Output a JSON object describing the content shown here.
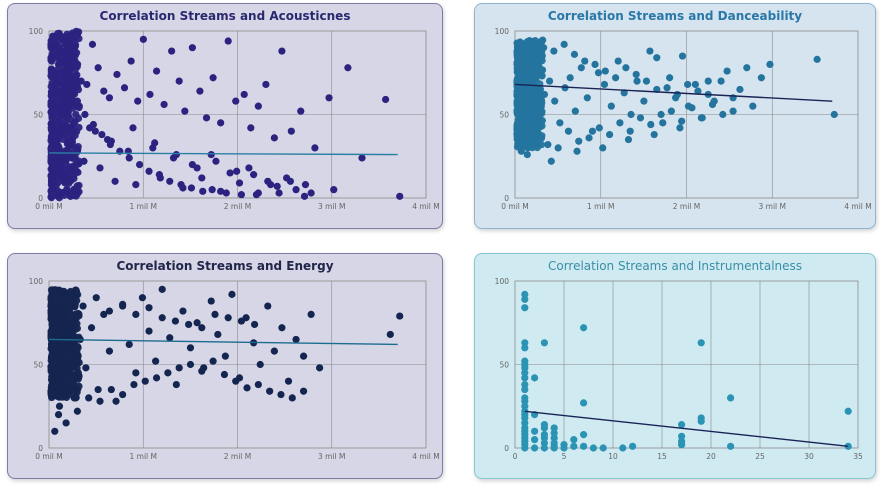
{
  "chart_data": [
    {
      "type": "scatter",
      "title": "Correlation Streams and Acousticnes",
      "x_ticks": [
        "0 mil M",
        "1 mil M",
        "2 mil M",
        "3 mil M",
        "4 mil M"
      ],
      "y_ticks": [
        "0",
        "50",
        "100"
      ],
      "xlim": [
        0,
        4000000000
      ],
      "ylim": [
        0,
        100
      ],
      "grid": true,
      "colors": {
        "points": "#2b237f",
        "trend": "#2a7fa6",
        "title": "#2b2870"
      },
      "trend": {
        "x": [
          0,
          3700000000
        ],
        "y": [
          27,
          26
        ]
      },
      "points": {
        "x": [
          20000000,
          40000000,
          60000000,
          90000000,
          120000000,
          150000000,
          190000000,
          230000000,
          270000000,
          320000000,
          380000000,
          440000000,
          500000000,
          560000000,
          620000000,
          700000000,
          780000000,
          850000000,
          920000000,
          980000000,
          1050000000,
          1120000000,
          1200000000,
          1280000000,
          1360000000,
          1420000000,
          1500000000,
          1580000000,
          1650000000,
          1720000000,
          1800000000,
          1880000000,
          1960000000,
          2050000000,
          2120000000,
          2200000000,
          2280000000,
          2370000000,
          2450000000,
          2550000000,
          2650000000,
          2800000000,
          2950000000,
          3150000000,
          3550000000,
          3700000000,
          60000000,
          140000000,
          260000000,
          410000000,
          600000000,
          820000000,
          1100000000,
          1300000000,
          1500000000,
          1700000000,
          1900000000,
          2100000000,
          2300000000,
          2500000000,
          2700000000,
          3000000000,
          100000000,
          220000000,
          350000000,
          520000000,
          680000000,
          900000000,
          1150000000,
          1400000000,
          1600000000,
          1800000000,
          2000000000,
          2200000000,
          2400000000,
          2600000000,
          2760000000,
          50000000,
          170000000,
          300000000,
          470000000,
          640000000,
          870000000,
          1080000000,
          1330000000,
          1550000000,
          1750000000,
          1970000000,
          2150000000,
          2330000000,
          2540000000,
          30000000,
          80000000,
          130000000,
          200000000,
          280000000,
          360000000,
          450000000,
          540000000,
          630000000,
          730000000,
          830000000,
          940000000,
          1040000000,
          1160000000,
          1260000000,
          1380000000,
          1490000000,
          1610000000,
          1710000000,
          1860000000,
          2020000000,
          2180000000,
          2420000000,
          2690000000,
          3300000000
        ],
        "y": [
          95,
          88,
          97,
          90,
          84,
          93,
          72,
          96,
          80,
          70,
          68,
          92,
          78,
          64,
          60,
          74,
          66,
          82,
          58,
          95,
          62,
          76,
          56,
          88,
          70,
          52,
          90,
          64,
          48,
          72,
          45,
          94,
          58,
          62,
          42,
          55,
          68,
          36,
          88,
          40,
          52,
          30,
          60,
          78,
          59,
          1,
          45,
          38,
          30,
          42,
          35,
          28,
          33,
          24,
          20,
          26,
          15,
          18,
          10,
          12,
          8,
          5,
          20,
          15,
          22,
          18,
          10,
          8,
          14,
          6,
          12,
          4,
          9,
          3,
          7,
          5,
          3,
          60,
          48,
          55,
          40,
          34,
          42,
          30,
          26,
          18,
          22,
          16,
          14,
          8,
          10,
          2,
          80,
          70,
          65,
          58,
          50,
          44,
          38,
          32,
          28,
          24,
          20,
          16,
          12,
          10,
          8,
          6,
          4,
          5,
          3,
          2,
          2,
          3,
          1,
          24
        ]
      },
      "dense_cluster": {
        "x_max": 300000000,
        "y_min": 0,
        "y_max": 100
      }
    },
    {
      "type": "scatter",
      "title": "Correlation Streams and Danceability",
      "x_ticks": [
        "0 mil M",
        "1 mil M",
        "2 mil M",
        "3 mil M",
        "4 mil M"
      ],
      "y_ticks": [
        "0",
        "50",
        "100"
      ],
      "xlim": [
        0,
        4000000000
      ],
      "ylim": [
        0,
        100
      ],
      "grid": true,
      "colors": {
        "points": "#24749e",
        "trend": "#1a2356",
        "title": "#2a78a8"
      },
      "trend": {
        "x": [
          0,
          3700000000
        ],
        "y": [
          68,
          58
        ]
      },
      "points": {
        "x": [
          50000000,
          100000000,
          150000000,
          200000000,
          260000000,
          320000000,
          380000000,
          440000000,
          500000000,
          560000000,
          620000000,
          680000000,
          750000000,
          820000000,
          880000000,
          950000000,
          1020000000,
          1100000000,
          1180000000,
          1250000000,
          1330000000,
          1400000000,
          1480000000,
          1550000000,
          1630000000,
          1700000000,
          1780000000,
          1850000000,
          1930000000,
          2000000000,
          2080000000,
          2150000000,
          2230000000,
          2300000000,
          2380000000,
          2450000000,
          2520000000,
          2600000000,
          2680000000,
          2750000000,
          2850000000,
          2950000000,
          3500000000,
          3700000000,
          120000000,
          240000000,
          360000000,
          480000000,
          600000000,
          720000000,
          840000000,
          960000000,
          1080000000,
          1200000000,
          1320000000,
          1440000000,
          1560000000,
          1680000000,
          1800000000,
          1920000000,
          2040000000,
          2160000000,
          2280000000,
          2400000000,
          2520000000,
          70000000,
          190000000,
          310000000,
          430000000,
          550000000,
          670000000,
          790000000,
          910000000,
          1030000000,
          1150000000,
          1270000000,
          1390000000,
          1510000000,
          1630000000,
          1750000000,
          1870000000,
          1990000000,
          2110000000,
          2230000000,
          400000000,
          700000000,
          1000000000,
          1300000000,
          1600000000,
          1900000000
        ],
        "y": [
          28,
          35,
          42,
          55,
          48,
          62,
          70,
          58,
          45,
          66,
          72,
          52,
          78,
          60,
          40,
          75,
          68,
          55,
          82,
          63,
          50,
          70,
          58,
          88,
          65,
          45,
          72,
          60,
          85,
          55,
          68,
          48,
          62,
          58,
          70,
          76,
          52,
          65,
          78,
          55,
          72,
          80,
          83,
          50,
          26,
          38,
          32,
          30,
          40,
          34,
          36,
          42,
          38,
          45,
          40,
          48,
          44,
          50,
          52,
          46,
          54,
          48,
          56,
          50,
          60,
          80,
          85,
          90,
          88,
          92,
          86,
          82,
          80,
          76,
          72,
          78,
          74,
          70,
          84,
          66,
          62,
          68,
          64,
          70,
          22,
          28,
          30,
          35,
          38,
          42
        ]
      },
      "dense_cluster": {
        "x_max": 300000000,
        "y_min": 30,
        "y_max": 95
      }
    },
    {
      "type": "scatter",
      "title": "Correlation Streams and Energy",
      "x_ticks": [
        "0 mil M",
        "1 mil M",
        "2 mil M",
        "3 mil M",
        "4 mil M"
      ],
      "y_ticks": [
        "0",
        "50",
        "100"
      ],
      "xlim": [
        0,
        4000000000
      ],
      "ylim": [
        0,
        100
      ],
      "grid": true,
      "colors": {
        "points": "#14254f",
        "trend": "#1d6c8f",
        "title": "#22274a"
      },
      "trend": {
        "x": [
          0,
          3700000000
        ],
        "y": [
          65,
          62
        ]
      },
      "points": {
        "x": [
          40000000,
          90000000,
          140000000,
          190000000,
          250000000,
          310000000,
          370000000,
          430000000,
          500000000,
          560000000,
          620000000,
          690000000,
          760000000,
          830000000,
          900000000,
          970000000,
          1040000000,
          1110000000,
          1180000000,
          1260000000,
          1330000000,
          1400000000,
          1480000000,
          1550000000,
          1620000000,
          1700000000,
          1770000000,
          1850000000,
          1920000000,
          2000000000,
          2070000000,
          2150000000,
          2220000000,
          2300000000,
          2370000000,
          2450000000,
          2520000000,
          2600000000,
          2680000000,
          2760000000,
          2850000000,
          3600000000,
          3700000000,
          80000000,
          160000000,
          280000000,
          400000000,
          520000000,
          640000000,
          760000000,
          880000000,
          1000000000,
          1120000000,
          1240000000,
          1360000000,
          1480000000,
          1600000000,
          1720000000,
          1840000000,
          1960000000,
          2080000000,
          2200000000,
          2320000000,
          2440000000,
          2560000000,
          2680000000,
          60000000,
          200000000,
          340000000,
          480000000,
          620000000,
          760000000,
          900000000,
          1040000000,
          1180000000,
          1320000000,
          1460000000,
          1600000000,
          1740000000,
          1880000000,
          2020000000,
          2160000000
        ],
        "y": [
          10,
          25,
          40,
          55,
          30,
          65,
          48,
          72,
          35,
          80,
          58,
          28,
          85,
          62,
          45,
          90,
          70,
          52,
          95,
          66,
          38,
          82,
          60,
          75,
          48,
          88,
          68,
          55,
          92,
          42,
          78,
          63,
          50,
          85,
          58,
          72,
          40,
          65,
          55,
          80,
          48,
          68,
          79,
          20,
          15,
          22,
          30,
          28,
          35,
          32,
          38,
          40,
          42,
          45,
          48,
          50,
          46,
          52,
          44,
          40,
          36,
          38,
          34,
          32,
          30,
          34,
          88,
          92,
          85,
          90,
          82,
          86,
          80,
          84,
          78,
          76,
          74,
          72,
          80,
          78,
          76,
          74
        ]
      },
      "dense_cluster": {
        "x_max": 300000000,
        "y_min": 30,
        "y_max": 95
      }
    },
    {
      "type": "scatter",
      "title": "Correlation Streams and Instrumentalness",
      "x_ticks": [
        "0",
        "5",
        "10",
        "15",
        "20",
        "25",
        "30",
        "35"
      ],
      "y_ticks": [
        "0",
        "50",
        "100"
      ],
      "xlim": [
        0,
        35
      ],
      "ylim": [
        0,
        100
      ],
      "grid": true,
      "colors": {
        "points": "#2b93b4",
        "trend": "#1a2356",
        "title": "#3a8ea8"
      },
      "trend": {
        "x": [
          1,
          34
        ],
        "y": [
          22,
          1
        ]
      },
      "points": {
        "x": [
          1,
          1,
          1,
          1,
          1,
          1,
          1,
          1,
          1,
          1,
          1,
          1,
          1,
          1,
          1,
          1,
          1,
          1,
          1,
          1,
          1,
          1,
          1,
          1,
          1,
          1,
          2,
          2,
          2,
          2,
          2,
          3,
          3,
          3,
          3,
          3,
          3,
          3,
          4,
          4,
          4,
          4,
          4,
          4,
          5,
          5,
          6,
          6,
          7,
          7,
          7,
          7,
          8,
          9,
          11,
          12,
          17,
          17,
          17,
          17,
          19,
          19,
          19,
          22,
          22,
          34,
          34
        ],
        "y": [
          92,
          89,
          84,
          63,
          60,
          52,
          50,
          48,
          45,
          42,
          38,
          35,
          30,
          28,
          25,
          22,
          20,
          18,
          15,
          12,
          10,
          8,
          6,
          4,
          2,
          0,
          42,
          20,
          10,
          5,
          0,
          63,
          14,
          12,
          8,
          6,
          3,
          0,
          12,
          9,
          6,
          3,
          1,
          0,
          2,
          0,
          5,
          1,
          72,
          27,
          8,
          1,
          0,
          0,
          0,
          1,
          14,
          7,
          4,
          2,
          63,
          18,
          16,
          30,
          1,
          22,
          1
        ]
      },
      "dense_cluster": null
    }
  ]
}
